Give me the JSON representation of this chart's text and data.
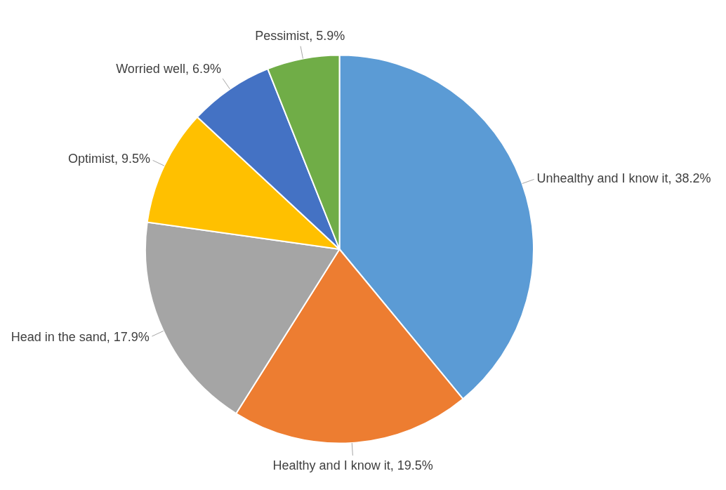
{
  "chart_data": {
    "type": "pie",
    "categories": [
      "Unhealthy and I know it",
      "Healthy and I know it",
      "Head in the sand",
      "Optimist",
      "Worried well",
      "Pessimist"
    ],
    "values": [
      38.2,
      19.5,
      17.9,
      9.5,
      6.9,
      5.9
    ],
    "colors": [
      "#5b9bd5",
      "#ed7d31",
      "#a5a5a5",
      "#ffc000",
      "#4472c4",
      "#70ad47"
    ],
    "value_labels": [
      "38.2%",
      "19.5%",
      "17.9%",
      "9.5%",
      "6.9%",
      "5.9%"
    ],
    "legend": false
  }
}
